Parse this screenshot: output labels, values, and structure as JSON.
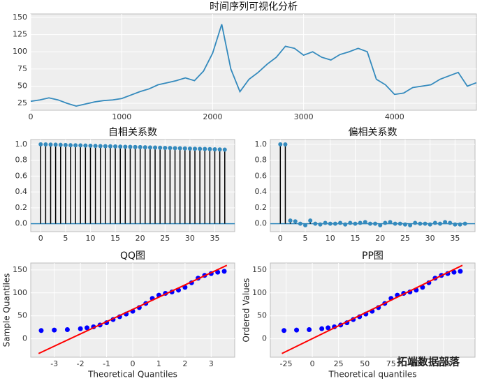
{
  "chart_data": [
    {
      "type": "line",
      "title": "时间序列可视化分析",
      "x": [
        0,
        100,
        200,
        300,
        400,
        500,
        600,
        700,
        800,
        900,
        1000,
        1100,
        1200,
        1300,
        1400,
        1500,
        1600,
        1700,
        1800,
        1900,
        2000,
        2100,
        2200,
        2300,
        2400,
        2500,
        2600,
        2700,
        2800,
        2900,
        3000,
        3100,
        3200,
        3300,
        3400,
        3500,
        3600,
        3700,
        3800,
        3900,
        4000,
        4100,
        4200,
        4300,
        4400,
        4500,
        4600,
        4700,
        4800,
        4900
      ],
      "y": [
        28,
        30,
        33,
        30,
        25,
        21,
        24,
        27,
        29,
        30,
        32,
        37,
        42,
        46,
        52,
        55,
        58,
        62,
        58,
        72,
        98,
        140,
        75,
        42,
        60,
        70,
        82,
        92,
        108,
        105,
        95,
        100,
        92,
        88,
        96,
        100,
        105,
        100,
        60,
        52,
        38,
        40,
        48,
        50,
        52,
        60,
        65,
        70,
        50,
        55
      ],
      "color": "#348abd",
      "xlim": [
        0,
        4900
      ],
      "ylim": [
        15,
        155
      ],
      "xticks": [
        0,
        1000,
        2000,
        3000,
        4000
      ],
      "yticks": [
        25,
        50,
        75,
        100,
        125,
        150
      ],
      "grid": true
    },
    {
      "type": "stem",
      "title": "自相关系数",
      "x": [
        0,
        1,
        2,
        3,
        4,
        5,
        6,
        7,
        8,
        9,
        10,
        11,
        12,
        13,
        14,
        15,
        16,
        17,
        18,
        19,
        20,
        21,
        22,
        23,
        24,
        25,
        26,
        27,
        28,
        29,
        30,
        31,
        32,
        33,
        34,
        35,
        36,
        37
      ],
      "values": [
        1.0,
        0.998,
        0.996,
        0.995,
        0.993,
        0.991,
        0.989,
        0.987,
        0.986,
        0.984,
        0.982,
        0.98,
        0.978,
        0.977,
        0.975,
        0.973,
        0.971,
        0.969,
        0.968,
        0.966,
        0.964,
        0.962,
        0.96,
        0.959,
        0.957,
        0.955,
        0.953,
        0.951,
        0.95,
        0.948,
        0.946,
        0.944,
        0.942,
        0.941,
        0.939,
        0.937,
        0.935,
        0.933
      ],
      "color": "#348abd",
      "xlim": [
        -2,
        39
      ],
      "ylim": [
        -0.1,
        1.06
      ],
      "xticks": [
        0,
        5,
        10,
        15,
        20,
        25,
        30,
        35
      ],
      "yticks": [
        {
          "value": 0,
          "label": "0.0"
        },
        0.2,
        0.4,
        0.6,
        0.8,
        {
          "value": 1,
          "label": "1.0"
        }
      ],
      "grid": true
    },
    {
      "type": "stem",
      "title": "偏相关系数",
      "x": [
        0,
        1,
        2,
        3,
        4,
        5,
        6,
        7,
        8,
        9,
        10,
        11,
        12,
        13,
        14,
        15,
        16,
        17,
        18,
        19,
        20,
        21,
        22,
        23,
        24,
        25,
        26,
        27,
        28,
        29,
        30,
        31,
        32,
        33,
        34,
        35,
        36,
        37
      ],
      "values": [
        1.0,
        0.998,
        0.04,
        0.03,
        0.0,
        -0.02,
        0.04,
        0.0,
        -0.01,
        0.01,
        0.0,
        0.0,
        0.01,
        -0.01,
        0.01,
        0.0,
        0.01,
        0.02,
        0.0,
        0.0,
        -0.02,
        0.01,
        0.02,
        0.0,
        0.0,
        -0.01,
        -0.02,
        0.01,
        0.0,
        0.0,
        -0.01,
        0.01,
        0.0,
        0.02,
        0.01,
        -0.01,
        -0.01,
        0.0
      ],
      "color": "#348abd",
      "xlim": [
        -2,
        39
      ],
      "ylim": [
        -0.1,
        1.06
      ],
      "xticks": [
        0,
        5,
        10,
        15,
        20,
        25,
        30,
        35
      ],
      "yticks": [
        {
          "value": 0,
          "label": "0.0"
        },
        0.2,
        0.4,
        0.6,
        0.8,
        {
          "value": 1,
          "label": "1.0"
        }
      ],
      "grid": true
    },
    {
      "type": "scatter",
      "title": "QQ图",
      "x_label": "Theoretical Quantiles",
      "y_label": "Sample Quantiles",
      "x": [
        -3.5,
        -3,
        -2.5,
        -2,
        -1.75,
        -1.5,
        -1.25,
        -1,
        -0.75,
        -0.5,
        -0.25,
        0,
        0.25,
        0.5,
        0.75,
        1,
        1.25,
        1.5,
        1.75,
        2,
        2.25,
        2.5,
        2.75,
        3,
        3.25,
        3.5
      ],
      "y": [
        18,
        19,
        20,
        22,
        24,
        26,
        30,
        35,
        42,
        48,
        54,
        60,
        68,
        77,
        88,
        95,
        99,
        102,
        106,
        112,
        122,
        132,
        138,
        142,
        145,
        147
      ],
      "color": "#0000ff",
      "fit_line": {
        "x": [
          -3.6,
          3.6
        ],
        "y": [
          -32,
          160
        ],
        "color": "#ff0000"
      },
      "xlim": [
        -3.9,
        3.9
      ],
      "ylim": [
        -40,
        165
      ],
      "xticks": [
        -3,
        -2,
        -1,
        0,
        1,
        2,
        3
      ],
      "yticks": [
        0,
        50,
        100,
        150
      ],
      "grid": true
    },
    {
      "type": "scatter",
      "title": "PP图",
      "x_label": "Theoretical quantiles",
      "y_label": "Ordered Values",
      "x": [
        -27,
        -15,
        -3,
        9,
        15,
        21,
        27,
        33,
        39,
        45,
        51,
        57,
        63,
        69,
        75,
        81,
        87,
        93,
        99,
        105,
        111,
        117,
        123,
        129,
        135,
        141
      ],
      "y": [
        18,
        19,
        20,
        22,
        24,
        26,
        30,
        35,
        42,
        48,
        54,
        60,
        68,
        77,
        88,
        95,
        99,
        102,
        106,
        112,
        122,
        132,
        138,
        142,
        145,
        147
      ],
      "color": "#0000ff",
      "fit_line": {
        "x": [
          -29,
          143
        ],
        "y": [
          -32,
          160
        ],
        "color": "#ff0000"
      },
      "xlim": [
        -40,
        155
      ],
      "ylim": [
        -40,
        165
      ],
      "xticks": [
        -25,
        0,
        25,
        50,
        75,
        100,
        125
      ],
      "yticks": [
        0,
        50,
        100,
        150
      ],
      "grid": true
    },
    {
      "type": "watermark",
      "text": "拓端数据部落"
    }
  ]
}
